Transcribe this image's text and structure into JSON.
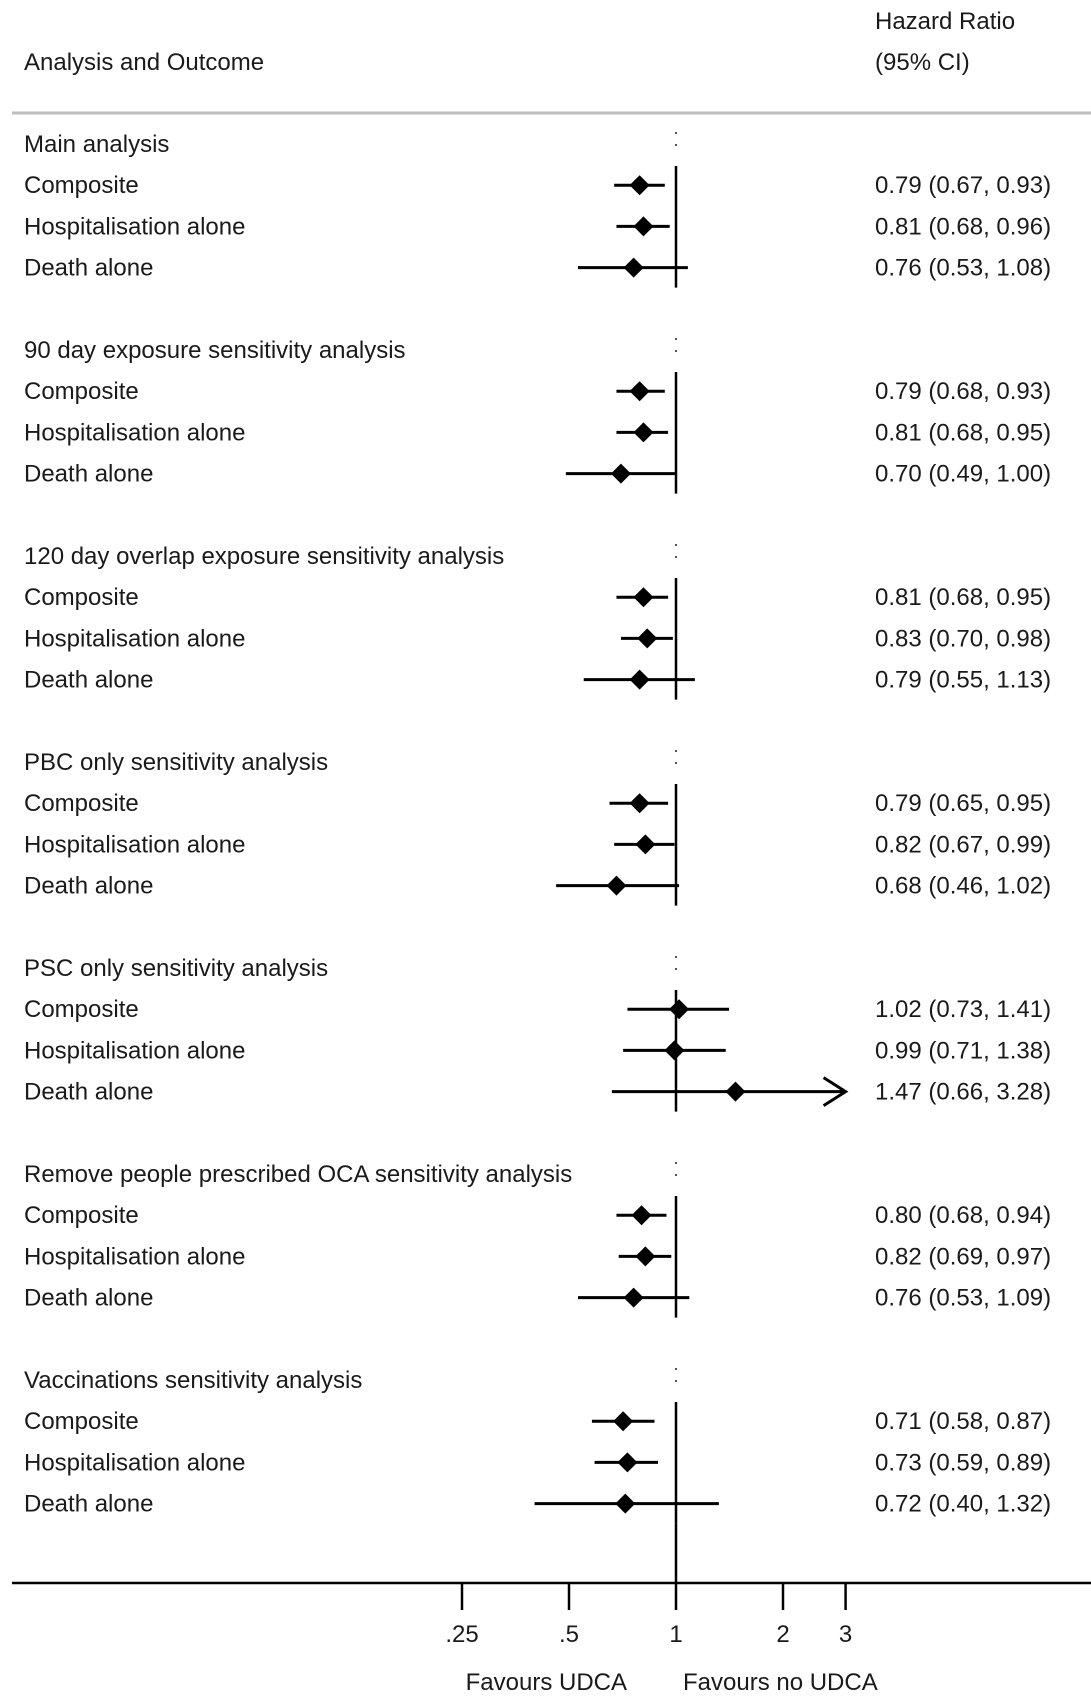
{
  "chart_data": {
    "type": "forest",
    "header": {
      "left": "Analysis and Outcome",
      "right_line1": "Hazard Ratio",
      "right_line2": "(95% CI)"
    },
    "x_scale": "log",
    "reference_line": 1,
    "xticks": [
      0.25,
      0.5,
      1,
      2,
      3
    ],
    "xtick_labels": [
      ".25",
      ".5",
      "1",
      "2",
      "3"
    ],
    "x_display_max": 3,
    "favours_left": "Favours UDCA",
    "favours_right": "Favours no UDCA",
    "groups": [
      {
        "title": "Main analysis",
        "rows": [
          {
            "label": "Composite",
            "hr": 0.79,
            "lo": 0.67,
            "hi": 0.93,
            "text": "0.79 (0.67, 0.93)"
          },
          {
            "label": "Hospitalisation alone",
            "hr": 0.81,
            "lo": 0.68,
            "hi": 0.96,
            "text": "0.81 (0.68, 0.96)"
          },
          {
            "label": "Death alone",
            "hr": 0.76,
            "lo": 0.53,
            "hi": 1.08,
            "text": "0.76 (0.53, 1.08)"
          }
        ]
      },
      {
        "title": "90 day exposure sensitivity analysis",
        "rows": [
          {
            "label": "Composite",
            "hr": 0.79,
            "lo": 0.68,
            "hi": 0.93,
            "text": "0.79 (0.68, 0.93)"
          },
          {
            "label": "Hospitalisation alone",
            "hr": 0.81,
            "lo": 0.68,
            "hi": 0.95,
            "text": "0.81 (0.68, 0.95)"
          },
          {
            "label": "Death alone",
            "hr": 0.7,
            "lo": 0.49,
            "hi": 1.0,
            "text": "0.70 (0.49, 1.00)"
          }
        ]
      },
      {
        "title": "120 day overlap exposure sensitivity analysis",
        "rows": [
          {
            "label": "Composite",
            "hr": 0.81,
            "lo": 0.68,
            "hi": 0.95,
            "text": "0.81 (0.68, 0.95)"
          },
          {
            "label": "Hospitalisation alone",
            "hr": 0.83,
            "lo": 0.7,
            "hi": 0.98,
            "text": "0.83 (0.70, 0.98)"
          },
          {
            "label": "Death alone",
            "hr": 0.79,
            "lo": 0.55,
            "hi": 1.13,
            "text": "0.79 (0.55, 1.13)"
          }
        ]
      },
      {
        "title": "PBC only sensitivity analysis",
        "rows": [
          {
            "label": "Composite",
            "hr": 0.79,
            "lo": 0.65,
            "hi": 0.95,
            "text": "0.79 (0.65, 0.95)"
          },
          {
            "label": "Hospitalisation alone",
            "hr": 0.82,
            "lo": 0.67,
            "hi": 0.99,
            "text": "0.82 (0.67, 0.99)"
          },
          {
            "label": "Death alone",
            "hr": 0.68,
            "lo": 0.46,
            "hi": 1.02,
            "text": "0.68 (0.46, 1.02)"
          }
        ]
      },
      {
        "title": "PSC only sensitivity analysis",
        "rows": [
          {
            "label": "Composite",
            "hr": 1.02,
            "lo": 0.73,
            "hi": 1.41,
            "text": "1.02 (0.73, 1.41)"
          },
          {
            "label": "Hospitalisation alone",
            "hr": 0.99,
            "lo": 0.71,
            "hi": 1.38,
            "text": "0.99 (0.71, 1.38)"
          },
          {
            "label": "Death alone",
            "hr": 1.47,
            "lo": 0.66,
            "hi": 3.28,
            "text": "1.47 (0.66, 3.28)"
          }
        ]
      },
      {
        "title": "Remove people prescribed OCA sensitivity analysis",
        "rows": [
          {
            "label": "Composite",
            "hr": 0.8,
            "lo": 0.68,
            "hi": 0.94,
            "text": "0.80 (0.68, 0.94)"
          },
          {
            "label": "Hospitalisation alone",
            "hr": 0.82,
            "lo": 0.69,
            "hi": 0.97,
            "text": "0.82 (0.69, 0.97)"
          },
          {
            "label": "Death alone",
            "hr": 0.76,
            "lo": 0.53,
            "hi": 1.09,
            "text": "0.76 (0.53, 1.09)"
          }
        ]
      },
      {
        "title": "Vaccinations sensitivity analysis",
        "rows": [
          {
            "label": "Composite",
            "hr": 0.71,
            "lo": 0.58,
            "hi": 0.87,
            "text": "0.71 (0.58, 0.87)"
          },
          {
            "label": "Hospitalisation alone",
            "hr": 0.73,
            "lo": 0.59,
            "hi": 0.89,
            "text": "0.73 (0.59, 0.89)"
          },
          {
            "label": "Death alone",
            "hr": 0.72,
            "lo": 0.4,
            "hi": 1.32,
            "text": "0.72 (0.40, 1.32)"
          }
        ]
      }
    ]
  }
}
